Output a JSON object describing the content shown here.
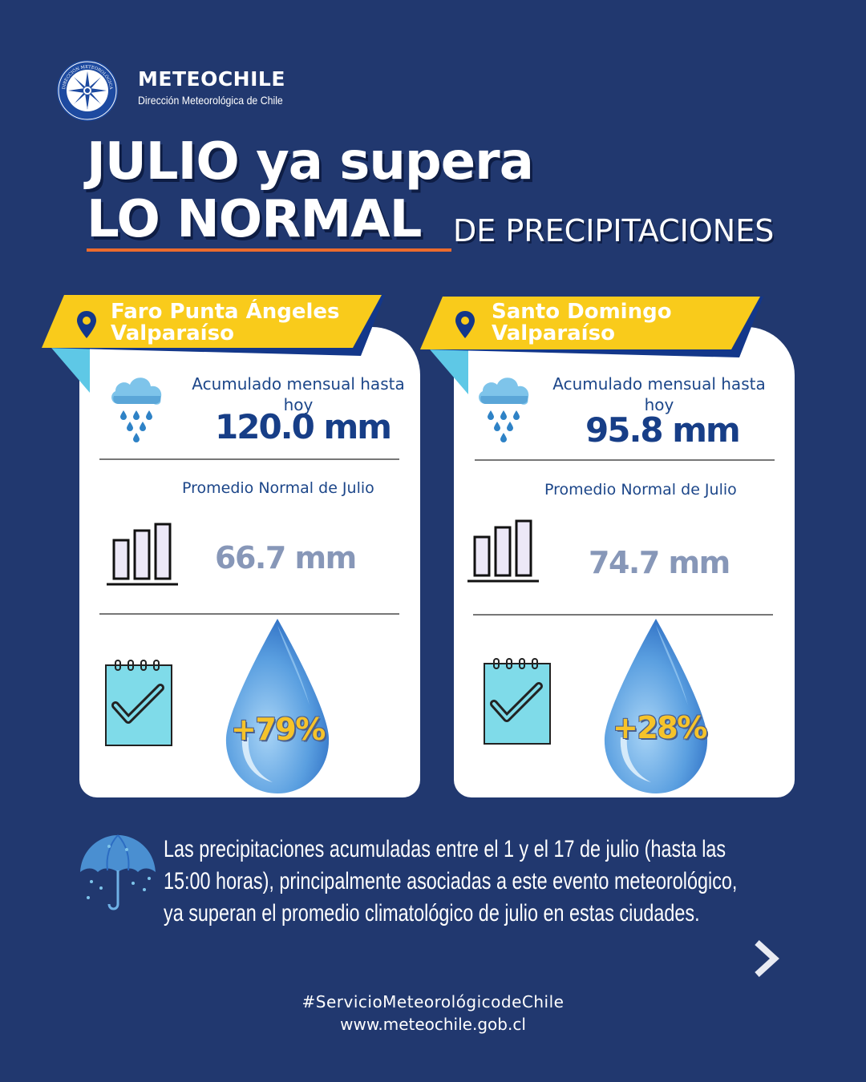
{
  "header": {
    "brand_name": "METEOCHILE",
    "brand_subtitle": "Dirección Meteorológica de Chile",
    "seal_text_top": "DIRECCIÓN METEOROLÓGICA",
    "seal_text_bottom": "METEOCHILE"
  },
  "title": {
    "line1": "JULIO ya supera",
    "line2_bold": "LO NORMAL",
    "line2_rest": "DE PRECIPITACIONES"
  },
  "colors": {
    "background": "#21386f",
    "ribbon": "#f9cb1b",
    "accent_underline": "#ec6b2d",
    "value_text": "#173e87",
    "muted_value": "#8797b8"
  },
  "stations": [
    {
      "name": "Faro Punta Ángeles",
      "region": "Valparaíso",
      "accum_label": "Acumulado mensual hasta hoy",
      "accum_value": "120.0 mm",
      "avg_label": "Promedio Normal de Julio",
      "avg_value": "66.7 mm",
      "percent": "+79%"
    },
    {
      "name": "Santo Domingo",
      "region": "Valparaíso",
      "accum_label": "Acumulado mensual hasta hoy",
      "accum_value": "95.8 mm",
      "avg_label": "Promedio Normal de Julio",
      "avg_value": "74.7 mm",
      "percent": "+28%"
    }
  ],
  "summary": {
    "line1": "Las precipitaciones acumuladas entre el 1 y el 17 de julio (hasta las",
    "line2": "15:00 horas), principalmente asociadas a este evento meteorológico,",
    "line3": "ya superan el promedio climatológico de julio en estas ciudades."
  },
  "footer": {
    "hashtag": "#ServicioMeteorológicodeChile",
    "website": "www.meteochile.gob.cl"
  },
  "icons": [
    "location-pin-icon",
    "rain-cloud-icon",
    "bar-chart-icon",
    "checklist-icon",
    "water-drop-icon",
    "umbrella-icon",
    "chevron-right-icon"
  ]
}
